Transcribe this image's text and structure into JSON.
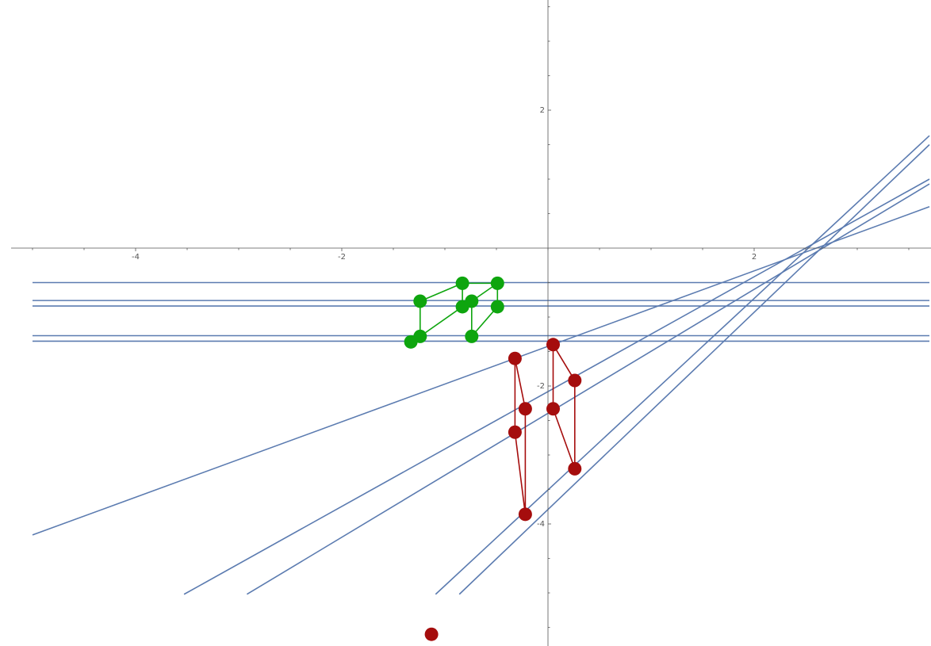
{
  "chart_data": {
    "type": "scatter",
    "title": "",
    "xlabel": "",
    "ylabel": "",
    "xlim": [
      -5.2,
      3.7
    ],
    "ylim": [
      -5.8,
      3.6
    ],
    "grid": false,
    "x_ticks": [
      {
        "value": -4,
        "label": "-4"
      },
      {
        "value": -2,
        "label": "-2"
      },
      {
        "value": 2,
        "label": "2"
      }
    ],
    "y_ticks": [
      {
        "value": 2,
        "label": "2"
      },
      {
        "value": -2,
        "label": "-2"
      },
      {
        "value": -4,
        "label": "-4"
      }
    ],
    "lines": [
      {
        "points": [
          [
            -5.0,
            -0.5
          ],
          [
            3.7,
            -0.5
          ]
        ]
      },
      {
        "points": [
          [
            -5.0,
            -0.76
          ],
          [
            3.7,
            -0.76
          ]
        ]
      },
      {
        "points": [
          [
            -5.0,
            -0.84
          ],
          [
            3.7,
            -0.84
          ]
        ]
      },
      {
        "points": [
          [
            -5.0,
            -1.27
          ],
          [
            3.7,
            -1.27
          ]
        ]
      },
      {
        "points": [
          [
            -5.0,
            -1.35
          ],
          [
            3.7,
            -1.35
          ]
        ]
      },
      {
        "points": [
          [
            -5.0,
            -4.16
          ],
          [
            3.7,
            0.6
          ]
        ]
      },
      {
        "points": [
          [
            -3.53,
            -5.02
          ],
          [
            3.7,
            1.0
          ]
        ]
      },
      {
        "points": [
          [
            -2.92,
            -5.02
          ],
          [
            3.7,
            0.93
          ]
        ]
      },
      {
        "points": [
          [
            -1.09,
            -5.02
          ],
          [
            3.7,
            1.63
          ]
        ]
      },
      {
        "points": [
          [
            -0.86,
            -5.02
          ],
          [
            3.7,
            1.5
          ]
        ]
      }
    ],
    "series": [
      {
        "color": "#0ea50e",
        "points": [
          [
            -1.24,
            -0.77
          ],
          [
            -0.83,
            -0.51
          ],
          [
            -0.49,
            -0.51
          ],
          [
            -0.74,
            -0.77
          ],
          [
            -0.83,
            -0.85
          ],
          [
            -0.49,
            -0.85
          ],
          [
            -1.24,
            -1.28
          ],
          [
            -0.74,
            -1.28
          ],
          [
            -1.33,
            -1.36
          ]
        ],
        "edges": [
          [
            0,
            1
          ],
          [
            1,
            2
          ],
          [
            0,
            6
          ],
          [
            1,
            4
          ],
          [
            3,
            7
          ],
          [
            2,
            5
          ],
          [
            4,
            3
          ],
          [
            4,
            6
          ],
          [
            5,
            7
          ],
          [
            2,
            3
          ]
        ]
      },
      {
        "color": "#a50d0d",
        "points": [
          [
            0.05,
            -1.4
          ],
          [
            -0.32,
            -1.6
          ],
          [
            0.26,
            -1.92
          ],
          [
            -0.22,
            -2.33
          ],
          [
            0.05,
            -2.33
          ],
          [
            -0.32,
            -2.67
          ],
          [
            0.26,
            -3.2
          ],
          [
            -0.22,
            -3.86
          ],
          [
            -1.13,
            -5.6
          ]
        ],
        "edges": [
          [
            0,
            2
          ],
          [
            1,
            3
          ],
          [
            1,
            5
          ],
          [
            3,
            7
          ],
          [
            0,
            4
          ],
          [
            4,
            6
          ],
          [
            2,
            6
          ],
          [
            5,
            7
          ]
        ]
      }
    ],
    "colors": {
      "axis": "#555555",
      "line": "#5b7bb0"
    }
  }
}
